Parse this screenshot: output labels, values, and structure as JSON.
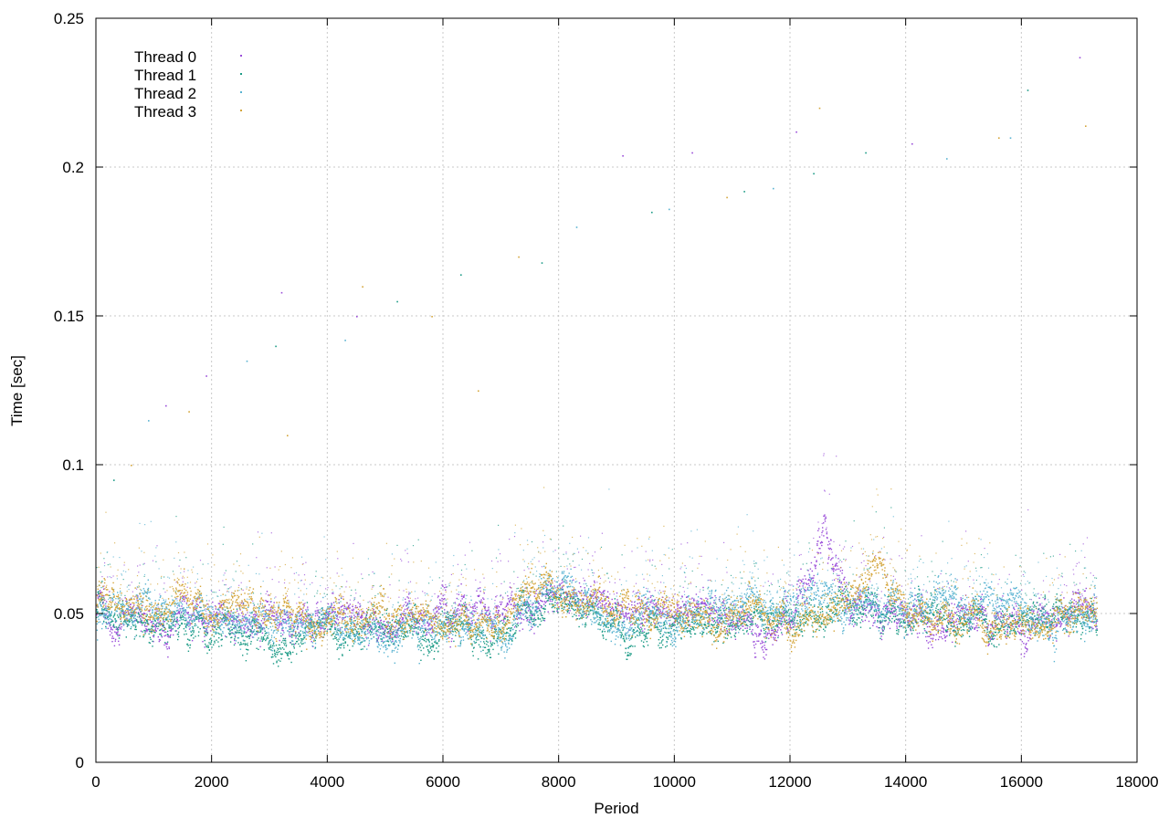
{
  "chart_data": {
    "type": "scatter",
    "title": "",
    "xlabel": "Period",
    "ylabel": "Time [sec]",
    "xlim": [
      0,
      18000
    ],
    "ylim": [
      0,
      0.25
    ],
    "x_ticks": [
      "0",
      "2000",
      "4000",
      "6000",
      "8000",
      "10000",
      "12000",
      "14000",
      "16000",
      "18000"
    ],
    "y_ticks": [
      "0",
      "0.05",
      "0.1",
      "0.15",
      "0.2",
      "0.25"
    ],
    "grid": true,
    "legend_position": "top-left",
    "point_count_per_series": 17300,
    "series": [
      {
        "name": "Thread 0",
        "color": "#9a4dd9",
        "approx_trend": {
          "x": [
            0,
            1000,
            2000,
            3000,
            4000,
            5000,
            6000,
            7000,
            8000,
            9000,
            10000,
            11000,
            12000,
            12600,
            13000,
            14000,
            15000,
            16000,
            17000,
            17300
          ],
          "y": [
            0.051,
            0.048,
            0.049,
            0.047,
            0.05,
            0.049,
            0.05,
            0.049,
            0.055,
            0.051,
            0.05,
            0.049,
            0.046,
            0.08,
            0.052,
            0.05,
            0.049,
            0.048,
            0.05,
            0.051
          ]
        },
        "outliers": [
          [
            1200,
            0.12
          ],
          [
            1900,
            0.13
          ],
          [
            3200,
            0.158
          ],
          [
            4500,
            0.15
          ],
          [
            9100,
            0.204
          ],
          [
            10300,
            0.205
          ],
          [
            12100,
            0.212
          ],
          [
            14100,
            0.208
          ],
          [
            17000,
            0.237
          ]
        ]
      },
      {
        "name": "Thread 1",
        "color": "#1c9b86",
        "approx_trend": {
          "x": [
            0,
            1000,
            2000,
            2500,
            3000,
            4000,
            5000,
            6000,
            7000,
            7800,
            9000,
            10000,
            11000,
            12000,
            13000,
            14000,
            15000,
            16000,
            17000,
            17300
          ],
          "y": [
            0.05,
            0.047,
            0.046,
            0.041,
            0.04,
            0.045,
            0.044,
            0.043,
            0.044,
            0.056,
            0.048,
            0.043,
            0.048,
            0.049,
            0.051,
            0.05,
            0.048,
            0.047,
            0.049,
            0.05
          ]
        },
        "outliers": [
          [
            300,
            0.095
          ],
          [
            3100,
            0.14
          ],
          [
            5200,
            0.155
          ],
          [
            6300,
            0.164
          ],
          [
            7700,
            0.168
          ],
          [
            9600,
            0.185
          ],
          [
            11200,
            0.192
          ],
          [
            12400,
            0.198
          ],
          [
            13300,
            0.205
          ],
          [
            16100,
            0.226
          ]
        ]
      },
      {
        "name": "Thread 2",
        "color": "#5ab3d1",
        "approx_trend": {
          "x": [
            0,
            1000,
            2000,
            3000,
            4000,
            5000,
            6000,
            7000,
            7800,
            9000,
            10000,
            11000,
            12000,
            12600,
            13000,
            14000,
            15000,
            16000,
            17000,
            17300
          ],
          "y": [
            0.049,
            0.051,
            0.05,
            0.049,
            0.047,
            0.045,
            0.046,
            0.045,
            0.058,
            0.049,
            0.048,
            0.053,
            0.054,
            0.056,
            0.054,
            0.052,
            0.053,
            0.052,
            0.05,
            0.052
          ]
        },
        "outliers": [
          [
            900,
            0.115
          ],
          [
            2600,
            0.135
          ],
          [
            4300,
            0.142
          ],
          [
            8300,
            0.18
          ],
          [
            9900,
            0.186
          ],
          [
            11700,
            0.193
          ],
          [
            14700,
            0.203
          ],
          [
            15800,
            0.21
          ]
        ]
      },
      {
        "name": "Thread 3",
        "color": "#d4a53a",
        "approx_trend": {
          "x": [
            0,
            1000,
            2000,
            3000,
            4000,
            5000,
            6000,
            7000,
            7800,
            9000,
            10000,
            11000,
            12000,
            13000,
            13500,
            14000,
            15000,
            16000,
            17000,
            17300
          ],
          "y": [
            0.054,
            0.052,
            0.053,
            0.05,
            0.043,
            0.05,
            0.047,
            0.046,
            0.06,
            0.051,
            0.049,
            0.05,
            0.047,
            0.053,
            0.07,
            0.05,
            0.047,
            0.046,
            0.048,
            0.049
          ]
        },
        "outliers": [
          [
            600,
            0.1
          ],
          [
            1600,
            0.118
          ],
          [
            3300,
            0.11
          ],
          [
            4600,
            0.16
          ],
          [
            5800,
            0.15
          ],
          [
            6600,
            0.125
          ],
          [
            7300,
            0.17
          ],
          [
            10900,
            0.19
          ],
          [
            12500,
            0.22
          ],
          [
            15600,
            0.21
          ],
          [
            17100,
            0.214
          ]
        ]
      }
    ]
  }
}
